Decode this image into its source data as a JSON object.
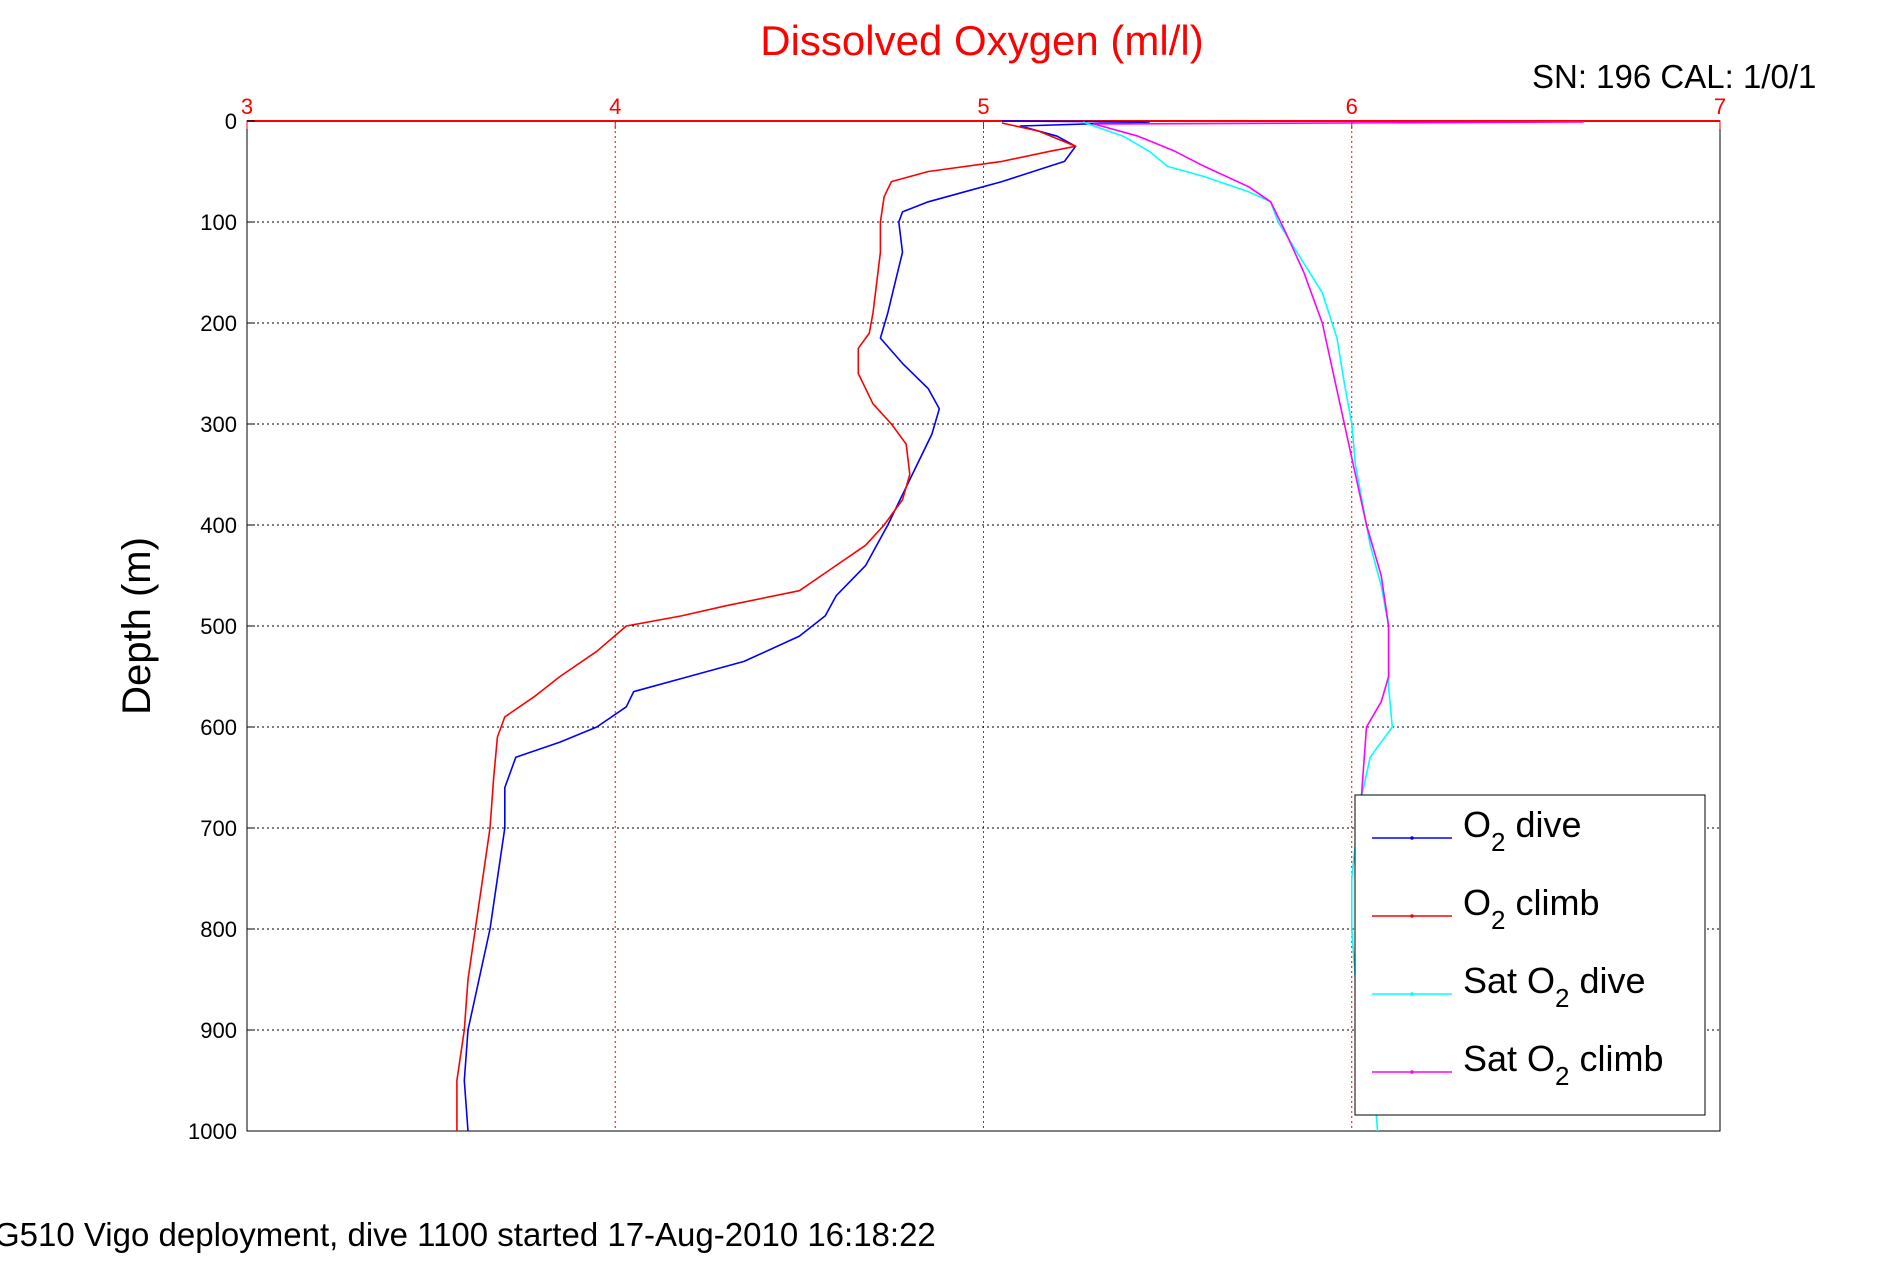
{
  "chart_data": {
    "type": "line",
    "title": "Dissolved Oxygen (ml/l)",
    "xlabel": "",
    "ylabel": "Depth (m)",
    "xlim": [
      3,
      7
    ],
    "ylim": [
      0,
      1000
    ],
    "y_reversed": true,
    "x_axis_position": "top",
    "x_ticks": [
      3,
      4,
      5,
      6,
      7
    ],
    "y_ticks": [
      0,
      100,
      200,
      300,
      400,
      500,
      600,
      700,
      800,
      900,
      1000
    ],
    "grid": true,
    "legend_position": "bottom-right",
    "annotation": "SN: 196  CAL: 1/0/1",
    "footer": "G510 Vigo deployment, dive 1100 started 17-Aug-2010 16:18:22",
    "series": [
      {
        "name": "O2 dive",
        "name_main": "O",
        "name_sub": "2",
        "name_rest": " dive",
        "color": "#0000ff",
        "points": [
          [
            5.05,
            0
          ],
          [
            5.45,
            1
          ],
          [
            5.1,
            5
          ],
          [
            5.2,
            15
          ],
          [
            5.25,
            25
          ],
          [
            5.22,
            40
          ],
          [
            5.05,
            60
          ],
          [
            4.95,
            70
          ],
          [
            4.85,
            80
          ],
          [
            4.78,
            90
          ],
          [
            4.77,
            100
          ],
          [
            4.78,
            130
          ],
          [
            4.76,
            160
          ],
          [
            4.74,
            190
          ],
          [
            4.72,
            215
          ],
          [
            4.78,
            240
          ],
          [
            4.85,
            265
          ],
          [
            4.88,
            285
          ],
          [
            4.86,
            310
          ],
          [
            4.82,
            340
          ],
          [
            4.78,
            370
          ],
          [
            4.74,
            400
          ],
          [
            4.68,
            440
          ],
          [
            4.6,
            470
          ],
          [
            4.57,
            490
          ],
          [
            4.5,
            510
          ],
          [
            4.35,
            535
          ],
          [
            4.2,
            550
          ],
          [
            4.05,
            565
          ],
          [
            4.03,
            580
          ],
          [
            3.95,
            600
          ],
          [
            3.85,
            615
          ],
          [
            3.73,
            630
          ],
          [
            3.7,
            660
          ],
          [
            3.7,
            700
          ],
          [
            3.68,
            750
          ],
          [
            3.66,
            800
          ],
          [
            3.63,
            850
          ],
          [
            3.6,
            900
          ],
          [
            3.59,
            950
          ],
          [
            3.6,
            1000
          ]
        ]
      },
      {
        "name": "O2 climb",
        "name_main": "O",
        "name_sub": "2",
        "name_rest": " climb",
        "color": "#ff0000",
        "points": [
          [
            5.05,
            2
          ],
          [
            5.15,
            10
          ],
          [
            5.25,
            25
          ],
          [
            5.18,
            30
          ],
          [
            5.05,
            40
          ],
          [
            4.85,
            50
          ],
          [
            4.75,
            60
          ],
          [
            4.73,
            75
          ],
          [
            4.72,
            100
          ],
          [
            4.72,
            130
          ],
          [
            4.71,
            160
          ],
          [
            4.7,
            190
          ],
          [
            4.69,
            210
          ],
          [
            4.66,
            225
          ],
          [
            4.66,
            250
          ],
          [
            4.7,
            280
          ],
          [
            4.75,
            300
          ],
          [
            4.79,
            320
          ],
          [
            4.8,
            350
          ],
          [
            4.78,
            375
          ],
          [
            4.73,
            400
          ],
          [
            4.68,
            420
          ],
          [
            4.58,
            445
          ],
          [
            4.5,
            465
          ],
          [
            4.3,
            480
          ],
          [
            4.18,
            490
          ],
          [
            4.03,
            500
          ],
          [
            3.95,
            525
          ],
          [
            3.85,
            550
          ],
          [
            3.78,
            570
          ],
          [
            3.7,
            590
          ],
          [
            3.68,
            610
          ],
          [
            3.67,
            650
          ],
          [
            3.66,
            700
          ],
          [
            3.64,
            750
          ],
          [
            3.62,
            800
          ],
          [
            3.6,
            850
          ],
          [
            3.59,
            900
          ],
          [
            3.57,
            950
          ],
          [
            3.57,
            1000
          ]
        ]
      },
      {
        "name": "Sat O2 dive",
        "name_main": "Sat O",
        "name_sub": "2",
        "name_rest": " dive",
        "color": "#00ffff",
        "points": [
          [
            5.27,
            1
          ],
          [
            5.3,
            5
          ],
          [
            5.38,
            15
          ],
          [
            5.45,
            30
          ],
          [
            5.5,
            45
          ],
          [
            5.6,
            55
          ],
          [
            5.72,
            70
          ],
          [
            5.78,
            80
          ],
          [
            5.8,
            100
          ],
          [
            5.86,
            135
          ],
          [
            5.92,
            170
          ],
          [
            5.96,
            215
          ],
          [
            5.98,
            260
          ],
          [
            6.0,
            300
          ],
          [
            6.01,
            340
          ],
          [
            6.03,
            380
          ],
          [
            6.05,
            420
          ],
          [
            6.08,
            460
          ],
          [
            6.1,
            500
          ],
          [
            6.1,
            560
          ],
          [
            6.11,
            600
          ],
          [
            6.05,
            630
          ],
          [
            6.02,
            680
          ],
          [
            6.0,
            750
          ],
          [
            6.0,
            800
          ],
          [
            6.01,
            850
          ],
          [
            6.04,
            900
          ],
          [
            6.06,
            950
          ],
          [
            6.07,
            1000
          ]
        ]
      },
      {
        "name": "Sat O2 climb",
        "name_main": "Sat O",
        "name_sub": "2",
        "name_rest": " climb",
        "color": "#ff00ff",
        "points": [
          [
            6.63,
            1
          ],
          [
            5.3,
            3
          ],
          [
            5.42,
            15
          ],
          [
            5.52,
            30
          ],
          [
            5.6,
            45
          ],
          [
            5.72,
            65
          ],
          [
            5.78,
            80
          ],
          [
            5.82,
            110
          ],
          [
            5.87,
            150
          ],
          [
            5.92,
            200
          ],
          [
            5.95,
            250
          ],
          [
            5.98,
            300
          ],
          [
            6.01,
            350
          ],
          [
            6.04,
            400
          ],
          [
            6.08,
            450
          ],
          [
            6.1,
            500
          ],
          [
            6.1,
            550
          ],
          [
            6.08,
            575
          ],
          [
            6.04,
            600
          ],
          [
            6.03,
            650
          ],
          [
            6.02,
            700
          ],
          [
            6.01,
            750
          ],
          [
            6.01,
            800
          ],
          [
            6.01,
            850
          ]
        ]
      }
    ]
  }
}
